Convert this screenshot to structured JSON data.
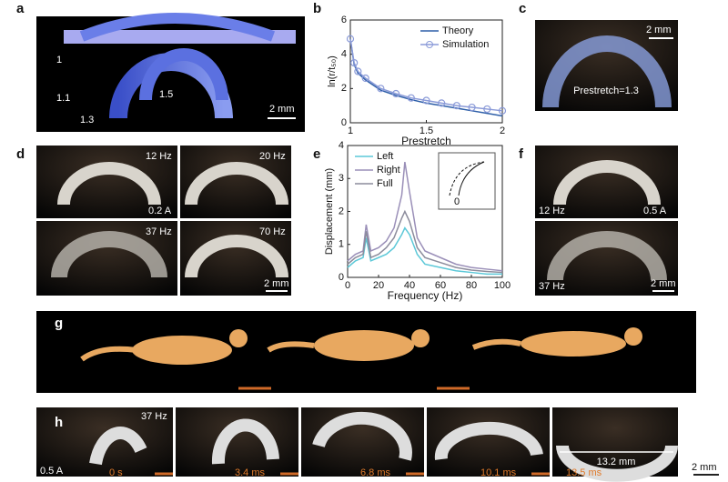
{
  "chart_data": [
    {
      "type": "line",
      "xlabel": "Prestretch",
      "ylabel": "ln(r/t₅₀)",
      "x": [
        1,
        1.025,
        1.05,
        1.1,
        1.2,
        1.3,
        1.4,
        1.5,
        1.6,
        1.7,
        1.8,
        1.9,
        2.0
      ],
      "series": [
        {
          "name": "Theory",
          "color": "#2e5fa8",
          "marker": false,
          "values": [
            4.9,
            3.4,
            2.9,
            2.5,
            1.9,
            1.6,
            1.35,
            1.15,
            1.0,
            0.85,
            0.7,
            0.55,
            0.4
          ]
        },
        {
          "name": "Simulation",
          "color": "#8a9ad8",
          "marker": true,
          "values": [
            4.9,
            3.5,
            3.0,
            2.6,
            2.0,
            1.7,
            1.45,
            1.3,
            1.15,
            1.0,
            0.9,
            0.8,
            0.7
          ]
        }
      ],
      "xlim": [
        1,
        2
      ],
      "xticks": [
        1,
        1.5,
        2
      ],
      "ylim": [
        0,
        6
      ],
      "yticks": [
        0,
        2,
        4,
        6
      ],
      "legend": "upper right"
    },
    {
      "type": "line",
      "xlabel": "Frequency (Hz)",
      "ylabel": "Displacement (mm)",
      "x": [
        0,
        5,
        10,
        12,
        15,
        20,
        25,
        30,
        35,
        37,
        40,
        45,
        50,
        60,
        70,
        80,
        90,
        100
      ],
      "series": [
        {
          "name": "Left",
          "color": "#5cc8d8",
          "marker": false,
          "values": [
            0.3,
            0.5,
            0.6,
            1.2,
            0.5,
            0.6,
            0.7,
            0.9,
            1.3,
            1.5,
            1.3,
            0.7,
            0.4,
            0.3,
            0.2,
            0.15,
            0.1,
            0.1
          ]
        },
        {
          "name": "Right",
          "color": "#9a8fb8",
          "marker": false,
          "values": [
            0.5,
            0.7,
            0.8,
            1.6,
            0.8,
            0.9,
            1.1,
            1.5,
            2.5,
            3.5,
            2.6,
            1.2,
            0.8,
            0.6,
            0.4,
            0.3,
            0.25,
            0.2
          ]
        },
        {
          "name": "Full",
          "color": "#8c8c9c",
          "marker": false,
          "values": [
            0.4,
            0.6,
            0.7,
            1.4,
            0.6,
            0.7,
            0.9,
            1.2,
            1.8,
            2.0,
            1.7,
            0.9,
            0.6,
            0.45,
            0.3,
            0.22,
            0.18,
            0.15
          ]
        }
      ],
      "xlim": [
        0,
        100
      ],
      "xticks": [
        0,
        20,
        40,
        60,
        80,
        100
      ],
      "ylim": [
        0,
        4
      ],
      "yticks": [
        0,
        1,
        2,
        3,
        4
      ],
      "legend": "upper left",
      "inset_label": "0"
    }
  ],
  "panels": {
    "letters": [
      "a",
      "b",
      "c",
      "d",
      "e",
      "f",
      "g",
      "h"
    ],
    "a": {
      "labels": [
        "1",
        "1.1",
        "1.3",
        "1.5"
      ],
      "scale": "2 mm"
    },
    "c": {
      "scale": "2 mm",
      "text": "Prestretch=1.3"
    },
    "d": {
      "frames": [
        "12 Hz",
        "20 Hz",
        "37 Hz",
        "70 Hz"
      ],
      "current": "0.2 A",
      "scale": "2 mm"
    },
    "f": {
      "frames": [
        "12 Hz",
        "37 Hz"
      ],
      "current": "0.5 A",
      "scale": "2 mm"
    },
    "h": {
      "frequency": "37 Hz",
      "current": "0.5 A",
      "times": [
        "0 s",
        "3.4 ms",
        "6.8 ms",
        "10.1 ms",
        "13.5 ms"
      ],
      "length": "13.2 mm",
      "scale": "2 mm"
    }
  }
}
